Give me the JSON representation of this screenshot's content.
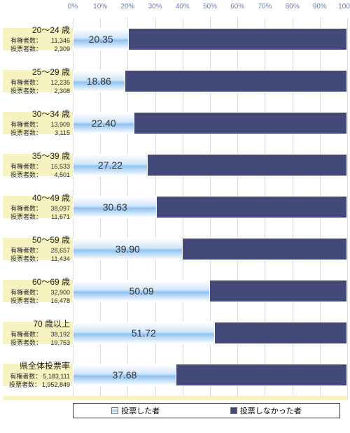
{
  "chart": {
    "type": "stacked-horizontal-bar-percent",
    "x_axis": {
      "min": 0,
      "max": 100,
      "tick_step": 10,
      "tick_suffix": "%"
    },
    "band_color": "#f7f3c0",
    "grid_color": "#d8dbe6",
    "colors": {
      "voted": "#a8d0f5",
      "not_voted": "#434a77"
    },
    "label_keys": {
      "eligible": "有権者数：",
      "voters": "投票者数："
    },
    "legend": {
      "voted": "投票した者",
      "not_voted": "投票しなかった者"
    },
    "rows": [
      {
        "label": "20～24 歳",
        "eligible": "11,346",
        "voters": "2,309",
        "pct": 20.35,
        "pct_text": "20.35"
      },
      {
        "label": "25～29 歳",
        "eligible": "12,235",
        "voters": "2,308",
        "pct": 18.86,
        "pct_text": "18.86"
      },
      {
        "label": "30～34 歳",
        "eligible": "13,909",
        "voters": "3,115",
        "pct": 22.4,
        "pct_text": "22.40"
      },
      {
        "label": "35～39 歳",
        "eligible": "16,533",
        "voters": "4,501",
        "pct": 27.22,
        "pct_text": "27.22"
      },
      {
        "label": "40～49 歳",
        "eligible": "38,097",
        "voters": "11,671",
        "pct": 30.63,
        "pct_text": "30.63"
      },
      {
        "label": "50～59 歳",
        "eligible": "28,657",
        "voters": "11,434",
        "pct": 39.9,
        "pct_text": "39.90"
      },
      {
        "label": "60～69 歳",
        "eligible": "32,900",
        "voters": "16,478",
        "pct": 50.09,
        "pct_text": "50.09"
      },
      {
        "label": "70 歳以上",
        "eligible": "38,192",
        "voters": "19,753",
        "pct": 51.72,
        "pct_text": "51.72"
      },
      {
        "label": "県全体投票率",
        "eligible": "5,183,111",
        "voters": "1,952,849",
        "pct": 37.68,
        "pct_text": "37.68"
      }
    ]
  }
}
